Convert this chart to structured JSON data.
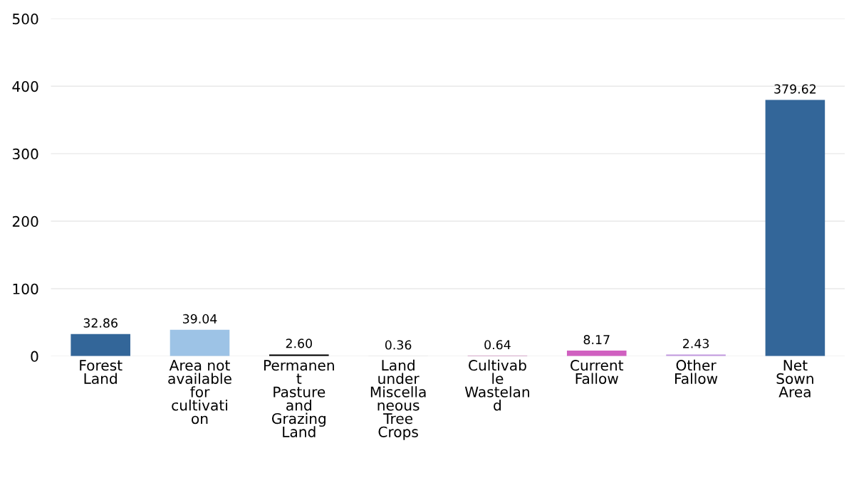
{
  "chart_data": {
    "type": "bar",
    "categories": [
      "Forest\nLand",
      "Area not\navailable\nfor\ncultivati\non",
      "Permanen\nt\nPasture\nand\nGrazing\nLand",
      "Land\nunder\nMiscella\nneous\nTree\nCrops",
      "Cultivab\nle\nWastelan\nd",
      "Current\nFallow",
      "Other\nFallow",
      "Net\nSown\nArea"
    ],
    "values": [
      32.86,
      39.04,
      2.6,
      0.36,
      0.64,
      8.17,
      2.43,
      379.62
    ],
    "colors": [
      "#336699",
      "#9dc3e6",
      "#000000",
      "#c8c8c8",
      "#a02c80",
      "#d060c0",
      "#c39be0",
      "#336699"
    ],
    "value_labels": [
      "32.86",
      "39.04",
      "2.60",
      "0.36",
      "0.64",
      "8.17",
      "2.43",
      "379.62"
    ],
    "ylim": [
      0,
      500
    ],
    "yticks": [
      0,
      100,
      200,
      300,
      400,
      500
    ],
    "grid": "y",
    "legend": false
  }
}
